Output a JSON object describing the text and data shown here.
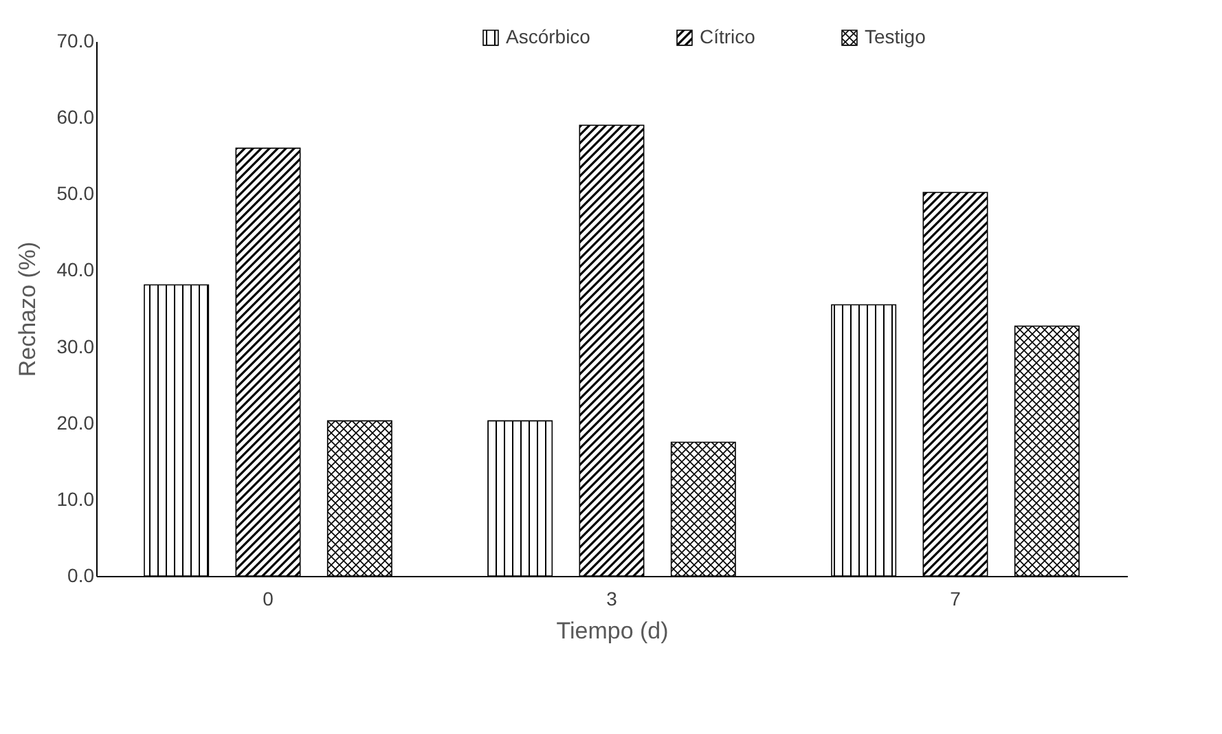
{
  "chart_data": {
    "type": "bar",
    "xlabel": "Tiempo (d)",
    "ylabel": "Rechazo (%)",
    "categories": [
      "0",
      "3",
      "7"
    ],
    "series": [
      {
        "name": "Ascórbico",
        "color": "#000000",
        "values": [
          38.1,
          20.3,
          35.5
        ]
      },
      {
        "name": "Cítrico",
        "color": "#000000",
        "values": [
          56.0,
          59.0,
          50.2
        ]
      },
      {
        "name": "Testigo",
        "color": "#000000",
        "values": [
          20.3,
          17.5,
          32.7
        ]
      }
    ],
    "ylim": [
      0,
      70
    ],
    "yticks": [
      {
        "value": 0,
        "label": "0.0"
      },
      {
        "value": 10,
        "label": "10.0"
      },
      {
        "value": 20,
        "label": "20.0"
      },
      {
        "value": 30,
        "label": "30.0"
      },
      {
        "value": 40,
        "label": "40.0"
      },
      {
        "value": 50,
        "label": "50.0"
      },
      {
        "value": 60,
        "label": "60.0"
      },
      {
        "value": 70,
        "label": "70.0"
      }
    ],
    "grid": false,
    "legend": "top"
  }
}
